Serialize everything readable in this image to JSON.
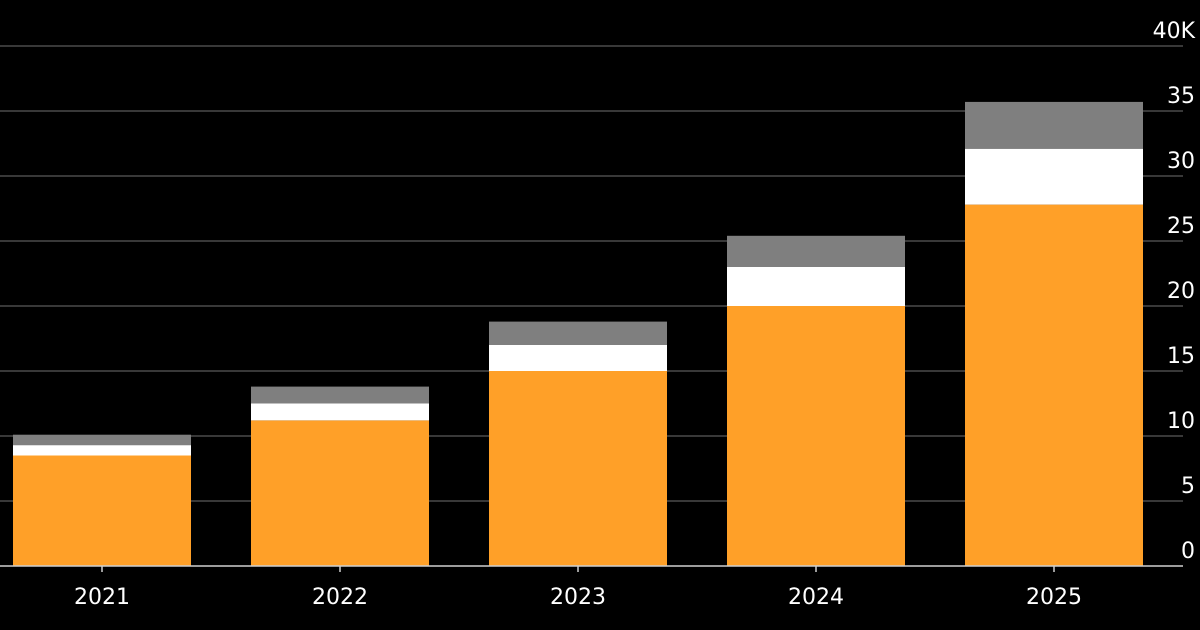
{
  "chart_data": {
    "type": "bar",
    "stacked": true,
    "categories": [
      "2021",
      "2022",
      "2023",
      "2024",
      "2025"
    ],
    "series": [
      {
        "color": "#ffa028",
        "values": [
          8.5,
          11.2,
          15.0,
          20.0,
          27.8
        ]
      },
      {
        "color": "#ffffff",
        "values": [
          0.8,
          1.3,
          2.0,
          3.0,
          4.3
        ]
      },
      {
        "color": "#7f7f7f",
        "values": [
          0.8,
          1.3,
          1.8,
          2.4,
          3.6
        ]
      }
    ],
    "y_ticks": [
      "0",
      "5",
      "10",
      "15",
      "20",
      "25",
      "30",
      "35",
      "40K"
    ],
    "ylim": [
      0,
      40
    ],
    "y_axis_position": "right",
    "grid": true,
    "legend": "none",
    "title": "",
    "xlabel": "",
    "ylabel": ""
  }
}
